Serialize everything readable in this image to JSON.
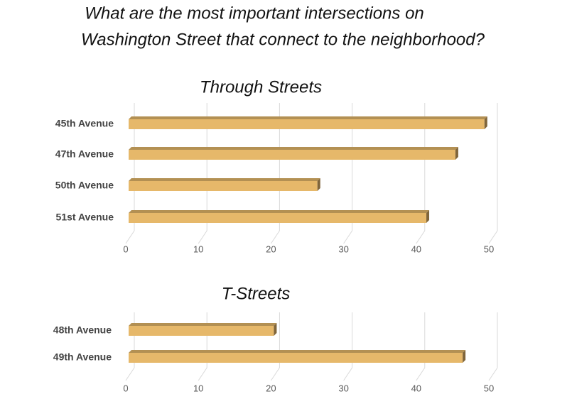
{
  "title": [
    "What are the most important intersections on",
    "Washington Street that connect to the neighborhood?"
  ],
  "chart_data": [
    {
      "type": "bar",
      "orientation": "horizontal",
      "title": "Through Streets",
      "categories": [
        "45th Avenue",
        "47th Avenue",
        "50th Avenue",
        "51st Avenue"
      ],
      "values": [
        49,
        45,
        26,
        41
      ],
      "color": "#e6b86a",
      "xlim": [
        0,
        50
      ],
      "xticks": [
        0,
        10,
        20,
        30,
        40,
        50
      ],
      "grid": true
    },
    {
      "type": "bar",
      "orientation": "horizontal",
      "title": "T-Streets",
      "categories": [
        "48th Avenue",
        "49th Avenue"
      ],
      "values": [
        20,
        46
      ],
      "color": "#e6b86a",
      "xlim": [
        0,
        50
      ],
      "xticks": [
        0,
        10,
        20,
        30,
        40,
        50
      ],
      "grid": true
    }
  ]
}
